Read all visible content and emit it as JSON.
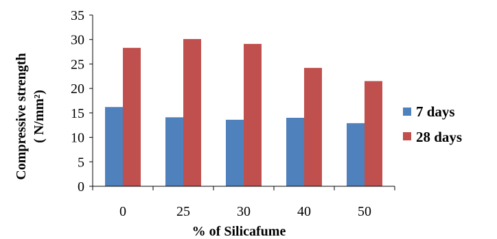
{
  "chart_data": {
    "type": "bar",
    "categories": [
      "0",
      "25",
      "30",
      "40",
      "50"
    ],
    "series": [
      {
        "name": "7 days",
        "values": [
          16.2,
          14.1,
          13.6,
          14.0,
          12.9
        ],
        "color": "#4f81bd"
      },
      {
        "name": "28 days",
        "values": [
          28.3,
          30.1,
          29.1,
          24.2,
          21.5
        ],
        "color": "#c0504d"
      }
    ],
    "xlabel": "% of Silicafume",
    "ylabel_line1": "Compressive strength",
    "ylabel_line2": "( N/mm²)",
    "ylim": [
      0,
      35
    ],
    "yticks": [
      "0",
      "5",
      "10",
      "15",
      "20",
      "25",
      "30",
      "35"
    ],
    "grid": false,
    "legend_position": "right"
  }
}
